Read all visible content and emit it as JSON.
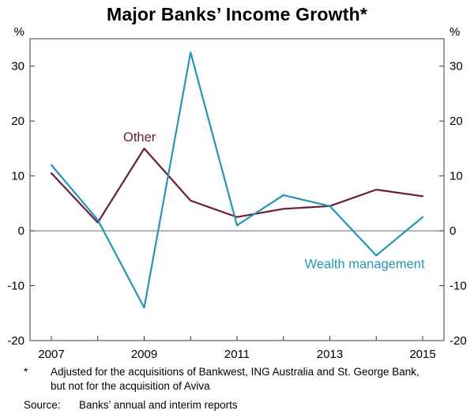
{
  "title": "Major Banks’ Income Growth*",
  "chart_data": {
    "type": "line",
    "title": "Major Banks’ Income Growth*",
    "unit_left": "%",
    "unit_right": "%",
    "x": [
      2007,
      2008,
      2009,
      2010,
      2011,
      2012,
      2013,
      2014,
      2015
    ],
    "xticks": [
      2007,
      2009,
      2011,
      2013,
      2015
    ],
    "yticks": [
      -20,
      -10,
      0,
      10,
      20,
      30
    ],
    "ylim": [
      -20,
      35
    ],
    "grid": false,
    "zero_line": true,
    "legend_position": "inline-labels",
    "series": [
      {
        "name": "Other",
        "color": "#6d1a41",
        "values": [
          10.5,
          1.5,
          15,
          5.5,
          2.5,
          4,
          4.5,
          7.5,
          6.3
        ],
        "label": {
          "text": "Other",
          "x": 2008.9,
          "y": 16.3
        }
      },
      {
        "name": "Wealth management",
        "color": "#2496b4",
        "values": [
          12,
          2,
          -14,
          32.5,
          1,
          6.5,
          4.5,
          -4.5,
          2.5
        ],
        "label": {
          "text": "Wealth management",
          "x": 2013.75,
          "y": -6.8
        }
      }
    ]
  },
  "footnote": {
    "marker": "*",
    "text": "Adjusted for the acquisitions of Bankwest, ING Australia and St. George Bank, but not for the acquisition of Aviva"
  },
  "source": {
    "label": "Source:",
    "text": "Banks’ annual and interim reports"
  }
}
